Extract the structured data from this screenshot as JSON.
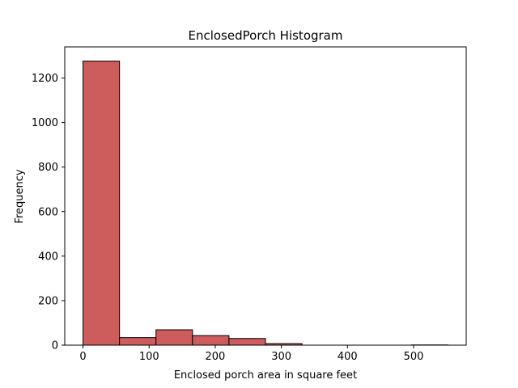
{
  "chart_data": {
    "type": "bar",
    "title": "EnclosedPorch Histogram",
    "xlabel": "Enclosed porch area in square feet",
    "ylabel": "Frequency",
    "bin_edges": [
      0,
      55.2,
      110.4,
      165.6,
      220.8,
      276,
      331.2,
      386.4,
      441.6,
      496.8,
      552
    ],
    "values": [
      1276,
      34,
      69,
      43,
      30,
      7,
      0,
      0,
      0,
      1
    ],
    "xlim": [
      -27.6,
      579.6
    ],
    "ylim": [
      0,
      1339.8
    ],
    "xticks": [
      0,
      100,
      200,
      300,
      400,
      500
    ],
    "yticks": [
      0,
      200,
      400,
      600,
      800,
      1000,
      1200
    ],
    "bar_color": "#cd5c5c",
    "edge_color": "#000000",
    "grid": false,
    "legend": "none"
  }
}
